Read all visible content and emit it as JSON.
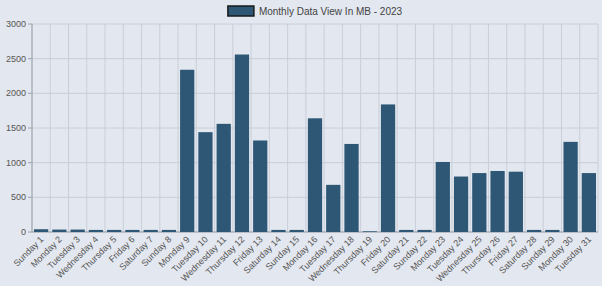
{
  "chart_data": {
    "type": "bar",
    "categories": [
      "Sunday 1",
      "Monday 2",
      "Tuesday 3",
      "Wednesday 4",
      "Thursday 5",
      "Friday 6",
      "Saturday 7",
      "Sunday 8",
      "Monday 9",
      "Tuesday 10",
      "Wednesday 11",
      "Thursday 12",
      "Friday 13",
      "Saturday 14",
      "Sunday 15",
      "Monday 16",
      "Tuesday 17",
      "Wednesday 18",
      "Thursday 19",
      "Friday 20",
      "Saturday 21",
      "Sunday 22",
      "Monday 23",
      "Tuesday 24",
      "Wednesday 25",
      "Thursday 26",
      "Friday 27",
      "Saturday 28",
      "Sunday 29",
      "Monday 30",
      "Tuesday 31"
    ],
    "series": [
      {
        "name": "Monthly Data View In MB - 2023",
        "color": "#2e5775",
        "values": [
          40,
          35,
          35,
          30,
          30,
          30,
          30,
          30,
          2340,
          1440,
          1560,
          2560,
          1320,
          30,
          30,
          1640,
          680,
          1270,
          10,
          1840,
          30,
          30,
          1010,
          800,
          850,
          880,
          870,
          30,
          30,
          1300,
          850
        ]
      }
    ],
    "ylim": [
      0,
      3000
    ],
    "yticks": [
      0,
      500,
      1000,
      1500,
      2000,
      2500,
      3000
    ],
    "grid": true,
    "legend": "top"
  }
}
